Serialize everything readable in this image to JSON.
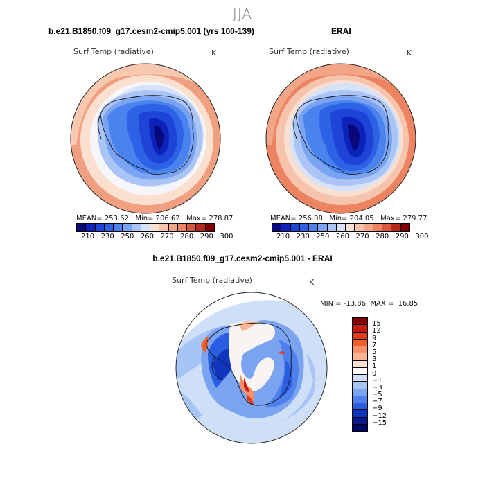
{
  "season": "JJA",
  "panel_left": {
    "title": "b.e21.B1850.f09_g17.cesm2-cmip5.001 (yrs 100-139)",
    "variable": "Surf Temp (radiative)",
    "unit": "K",
    "stats": "MEAN= 253.62   Min= 206.62   Max= 278.87"
  },
  "panel_right": {
    "title": "ERAI",
    "variable": "Surf Temp (radiative)",
    "unit": "K",
    "stats": "MEAN= 256.08   Min= 204.05   Max= 279.77"
  },
  "panel_diff": {
    "title": "b.e21.B1850.f09_g17.cesm2-cmip5.001 - ERAI",
    "variable": "Surf Temp (radiative)",
    "unit": "K",
    "stats": "MIN = -13.86  MAX =  16.85"
  },
  "colorbar_abs": {
    "colors": [
      "#08087a",
      "#0c22b8",
      "#1d44d6",
      "#2e62e6",
      "#4a82ee",
      "#7aa4f2",
      "#a9c4f5",
      "#d6e2f7",
      "#f8e0d3",
      "#f6c4ad",
      "#f2a587",
      "#ec8462",
      "#d9583c",
      "#b52a1c",
      "#800000"
    ],
    "tick_text": "210   230   250   260   270   280   290   300"
  },
  "colorbar_diff": {
    "colors": [
      "#800000",
      "#c81c10",
      "#e53b16",
      "#f4602a",
      "#f9906a",
      "#fbb698",
      "#fde0cf",
      "#ffffff",
      "#cfdff8",
      "#a6c4f5",
      "#7aa3f0",
      "#4f80ec",
      "#2a5ee0",
      "#1036c0",
      "#071a8e",
      "#02086a"
    ],
    "labels": [
      "15",
      "12",
      "9",
      "7",
      "5",
      "3",
      "1",
      "0",
      "−1",
      "−3",
      "−5",
      "−7",
      "−9",
      "−12",
      "−15"
    ]
  }
}
